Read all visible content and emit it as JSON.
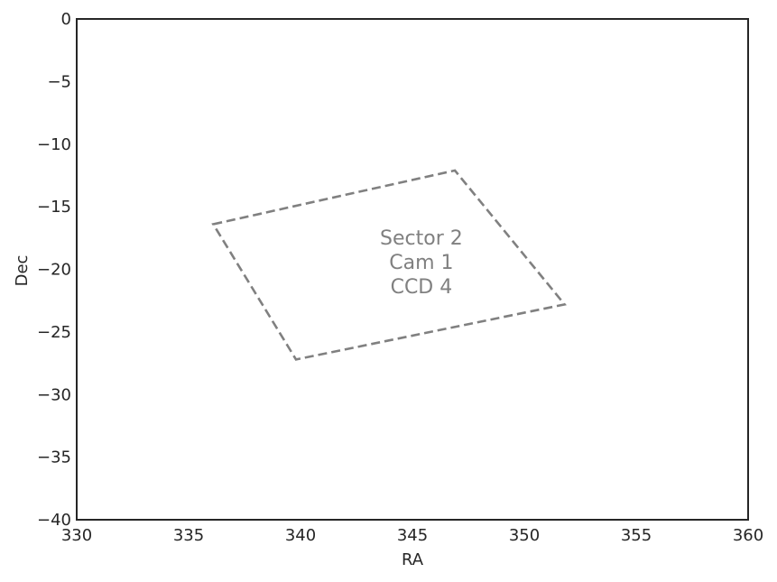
{
  "chart_data": {
    "type": "line",
    "xlabel": "RA",
    "ylabel": "Dec",
    "xlim": [
      330,
      360
    ],
    "ylim": [
      -40,
      0
    ],
    "xticks": [
      330,
      335,
      340,
      345,
      350,
      355,
      360
    ],
    "yticks": [
      0,
      -5,
      -10,
      -15,
      -20,
      -25,
      -30,
      -35,
      -40
    ],
    "xtick_labels": [
      "330",
      "335",
      "340",
      "345",
      "350",
      "355",
      "360"
    ],
    "ytick_labels": [
      "0",
      "−5",
      "−10",
      "−15",
      "−20",
      "−25",
      "−30",
      "−35",
      "−40"
    ],
    "grid": false,
    "series": [
      {
        "line_style": "dashed",
        "color": "#808080",
        "closed": true,
        "x": [
          336.1,
          346.9,
          351.8,
          339.8
        ],
        "y": [
          -16.4,
          -12.1,
          -22.8,
          -27.2
        ]
      }
    ],
    "annotations": [
      {
        "text": "Sector 2",
        "x": 345.4,
        "y": -18.0
      },
      {
        "text": "Cam 1",
        "x": 345.4,
        "y": -19.95
      },
      {
        "text": "CCD 4",
        "x": 345.4,
        "y": -21.9
      }
    ],
    "colors": {
      "axes": "#262626",
      "series": "#808080",
      "background": "#ffffff"
    }
  }
}
